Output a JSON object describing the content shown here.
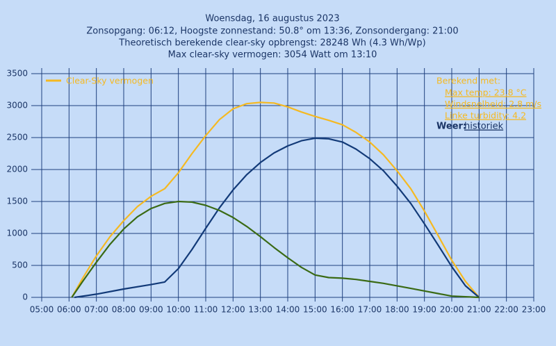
{
  "chart_data": {
    "type": "line",
    "title": "Woensdag, 16 augustus 2023",
    "subtitles": [
      "Zonsopgang: 06:12, Hoogste zonnestand: 50.8° om 13:36, Zonsondergang: 21:00",
      "Theoretisch berekende clear-sky opbrengst: 28248 Wh (4.3 Wh/Wp)",
      "Max clear-sky vermogen: 3054 Watt om 13:10"
    ],
    "annotations": {
      "heading": "Berekend met:",
      "items": [
        "Max temp: 23.8 °C",
        "Windsnelheid: 2.8 m/s",
        "Linke turbidity: 4.2"
      ],
      "weather_label": "Weer:",
      "weather_link": "historiek"
    },
    "xlim": [
      5,
      23
    ],
    "xticks": [
      {
        "value": 5,
        "label": "05:00"
      },
      {
        "value": 6,
        "label": "06:00"
      },
      {
        "value": 7,
        "label": "07:00"
      },
      {
        "value": 8,
        "label": "08:00"
      },
      {
        "value": 9,
        "label": "09:00"
      },
      {
        "value": 10,
        "label": "10:00"
      },
      {
        "value": 11,
        "label": "11:00"
      },
      {
        "value": 12,
        "label": "12:00"
      },
      {
        "value": 13,
        "label": "13:00"
      },
      {
        "value": 14,
        "label": "14:00"
      },
      {
        "value": 15,
        "label": "15:00"
      },
      {
        "value": 16,
        "label": "16:00"
      },
      {
        "value": 17,
        "label": "17:00"
      },
      {
        "value": 18,
        "label": "18:00"
      },
      {
        "value": 19,
        "label": "19:00"
      },
      {
        "value": 20,
        "label": "20:00"
      },
      {
        "value": 21,
        "label": "21:00"
      },
      {
        "value": 22,
        "label": "22:00"
      },
      {
        "value": 23,
        "label": "23:00"
      }
    ],
    "ylim": [
      0,
      3500
    ],
    "yticks": [
      0,
      500,
      1000,
      1500,
      2000,
      2500,
      3000,
      3500
    ],
    "grid": true,
    "legend": "top-left",
    "series": [
      {
        "name": "Clear-Sky vermogen",
        "color": "#f5b921",
        "x": [
          6.1,
          6.5,
          7,
          7.5,
          8,
          8.5,
          9,
          9.5,
          10,
          10.5,
          11,
          11.5,
          12,
          12.5,
          13,
          13.5,
          14,
          14.5,
          15,
          15.5,
          16,
          16.5,
          17,
          17.5,
          18,
          18.5,
          19,
          19.5,
          20,
          20.5,
          21
        ],
        "values": [
          0,
          300,
          650,
          950,
          1200,
          1420,
          1580,
          1700,
          1950,
          2250,
          2530,
          2780,
          2950,
          3030,
          3050,
          3040,
          2980,
          2900,
          2830,
          2770,
          2700,
          2580,
          2430,
          2230,
          1980,
          1700,
          1350,
          970,
          580,
          250,
          0
        ]
      },
      {
        "color": "#123a78",
        "x": [
          6.2,
          7,
          8,
          9,
          9.5,
          10,
          10.5,
          11,
          11.5,
          12,
          12.5,
          13,
          13.5,
          14,
          14.5,
          15,
          15.5,
          16,
          16.5,
          17,
          17.5,
          18,
          18.5,
          19,
          19.5,
          20,
          20.5,
          21
        ],
        "values": [
          0,
          50,
          130,
          200,
          240,
          450,
          750,
          1080,
          1400,
          1680,
          1920,
          2110,
          2260,
          2370,
          2450,
          2490,
          2480,
          2430,
          2320,
          2170,
          1980,
          1740,
          1470,
          1150,
          820,
          480,
          180,
          0
        ]
      },
      {
        "color": "#3a6a14",
        "x": [
          6.1,
          6.5,
          7,
          7.5,
          8,
          8.5,
          9,
          9.5,
          10,
          10.5,
          11,
          11.5,
          12,
          12.5,
          13,
          13.5,
          14,
          14.5,
          15,
          15.5,
          16,
          16.5,
          17,
          17.5,
          18,
          18.5,
          19,
          19.5,
          20,
          21
        ],
        "values": [
          0,
          250,
          550,
          830,
          1070,
          1260,
          1390,
          1470,
          1500,
          1490,
          1440,
          1360,
          1250,
          1110,
          950,
          780,
          620,
          470,
          350,
          310,
          300,
          280,
          250,
          220,
          180,
          140,
          100,
          60,
          20,
          0
        ]
      }
    ]
  }
}
